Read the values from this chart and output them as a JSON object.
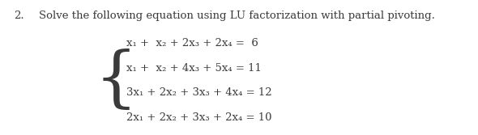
{
  "title_number": "2.",
  "title_text": "Solve the following equation using LU factorization with partial pivoting.",
  "equations": [
    "x₁ +  x₂ + 2x₃ + 2x₄ =  6",
    "x₁ +  x₂ + 4x₃ + 5x₄ = 11",
    "3x₁ + 2x₂ + 3x₃ + 4x₄ = 12",
    "2x₁ + 2x₂ + 3x₃ + 2x₄ = 10"
  ],
  "bg_color": "#ffffff",
  "text_color": "#3a3a3a",
  "font_size_title": 9.5,
  "font_size_eq": 9.5,
  "fig_width": 5.9,
  "fig_height": 1.67,
  "dpi": 100
}
